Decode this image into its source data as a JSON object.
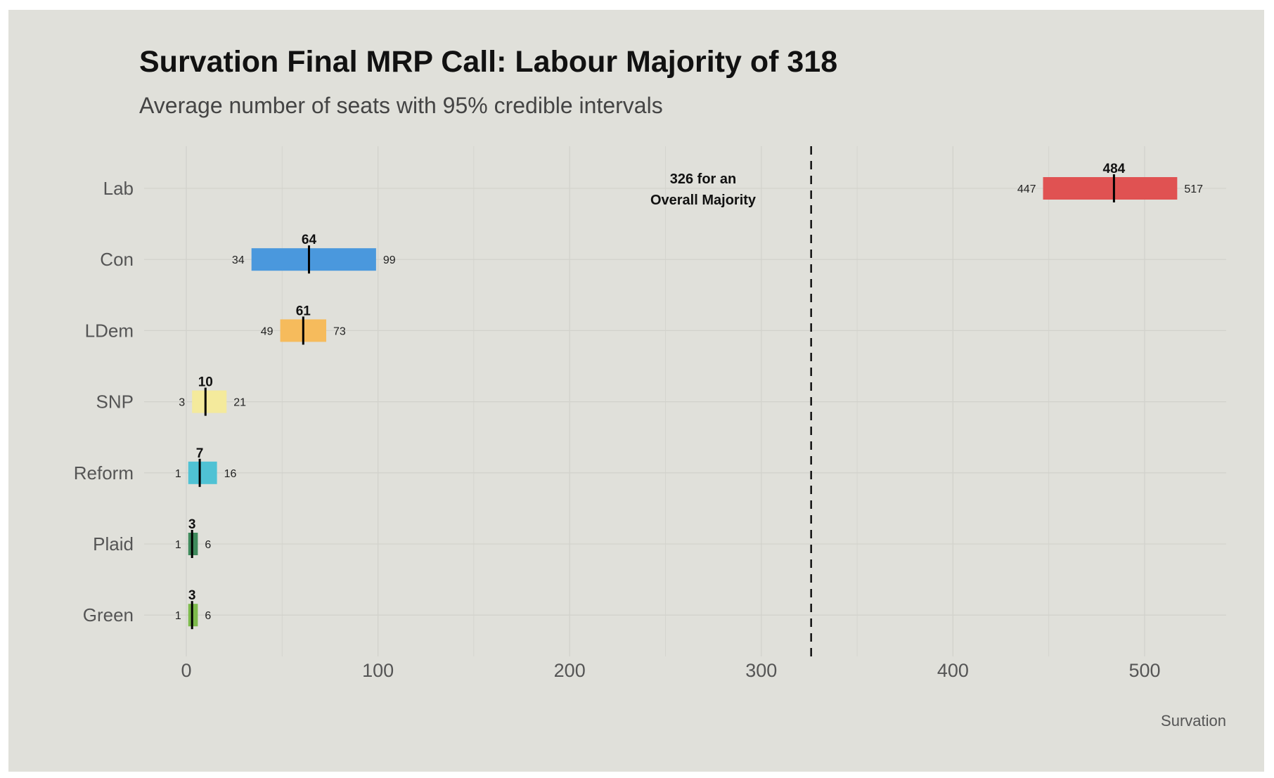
{
  "chart_data": {
    "type": "interval",
    "title": "Survation Final MRP Call: Labour Majority of 318",
    "subtitle": "Average number of seats with 95% credible intervals",
    "caption": "Survation",
    "xlabel": "",
    "ylabel": "",
    "xlim": [
      0,
      540
    ],
    "x_ticks": [
      0,
      100,
      200,
      300,
      400,
      500
    ],
    "grid": true,
    "reference_line": {
      "value": 326,
      "style": "dashed",
      "label_line1": "326 for an",
      "label_line2": "Overall Majority"
    },
    "categories": [
      "Lab",
      "Con",
      "LDem",
      "SNP",
      "Reform",
      "Plaid",
      "Green"
    ],
    "series": [
      {
        "party": "Lab",
        "mean": 484,
        "low": 447,
        "high": 517,
        "color": "#e05252"
      },
      {
        "party": "Con",
        "mean": 64,
        "low": 34,
        "high": 99,
        "color": "#4a98dd"
      },
      {
        "party": "LDem",
        "mean": 61,
        "low": 49,
        "high": 73,
        "color": "#f6bb5c"
      },
      {
        "party": "SNP",
        "mean": 10,
        "low": 3,
        "high": 21,
        "color": "#f4ea9c"
      },
      {
        "party": "Reform",
        "mean": 7,
        "low": 1,
        "high": 16,
        "color": "#4fc2d4"
      },
      {
        "party": "Plaid",
        "mean": 3,
        "low": 1,
        "high": 6,
        "color": "#3f8a5c"
      },
      {
        "party": "Green",
        "mean": 3,
        "low": 1,
        "high": 6,
        "color": "#7dba4c"
      }
    ]
  }
}
